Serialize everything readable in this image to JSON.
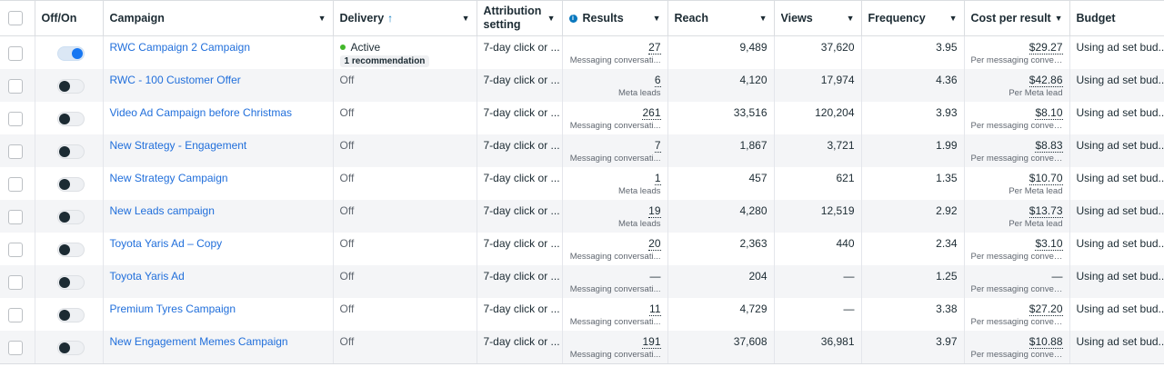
{
  "headers": {
    "off_on": "Off/On",
    "campaign": "Campaign",
    "delivery": "Delivery",
    "delivery_sort_icon": "arrow-up",
    "attribution_line1": "Attribution",
    "attribution_line2": "setting",
    "results": "Results",
    "reach": "Reach",
    "views": "Views",
    "frequency": "Frequency",
    "cost": "Cost per result",
    "budget": "Budget"
  },
  "colors": {
    "link": "#216fdb",
    "active_dot": "#42b72a",
    "toggle_on": "#1877f2"
  },
  "rows": [
    {
      "toggle_on": true,
      "name": "RWC Campaign 2 Campaign",
      "delivery": "Active",
      "recommendation": "1 recommendation",
      "attribution": "7-day click or ...",
      "results": "27",
      "results_sub": "Messaging conversati...",
      "reach": "9,489",
      "views": "37,620",
      "frequency": "3.95",
      "cost": "$29.27",
      "cost_sub": "Per messaging conver...",
      "budget": "Using ad set bud..."
    },
    {
      "toggle_on": false,
      "name": "RWC - 100 Customer Offer",
      "delivery": "Off",
      "attribution": "7-day click or ...",
      "results": "6",
      "results_sub": "Meta leads",
      "reach": "4,120",
      "views": "17,974",
      "frequency": "4.36",
      "cost": "$42.86",
      "cost_sub": "Per Meta lead",
      "budget": "Using ad set bud..."
    },
    {
      "toggle_on": false,
      "name": "Video Ad Campaign before Christmas",
      "delivery": "Off",
      "attribution": "7-day click or ...",
      "results": "261",
      "results_sub": "Messaging conversati...",
      "reach": "33,516",
      "views": "120,204",
      "frequency": "3.93",
      "cost": "$8.10",
      "cost_sub": "Per messaging conver...",
      "budget": "Using ad set bud..."
    },
    {
      "toggle_on": false,
      "name": "New Strategy - Engagement",
      "delivery": "Off",
      "attribution": "7-day click or ...",
      "results": "7",
      "results_sub": "Messaging conversati...",
      "reach": "1,867",
      "views": "3,721",
      "frequency": "1.99",
      "cost": "$8.83",
      "cost_sub": "Per messaging conver...",
      "budget": "Using ad set bud..."
    },
    {
      "toggle_on": false,
      "name": "New Strategy Campaign",
      "delivery": "Off",
      "attribution": "7-day click or ...",
      "results": "1",
      "results_sub": "Meta leads",
      "reach": "457",
      "views": "621",
      "frequency": "1.35",
      "cost": "$10.70",
      "cost_sub": "Per Meta lead",
      "budget": "Using ad set bud..."
    },
    {
      "toggle_on": false,
      "name": "New Leads campaign",
      "delivery": "Off",
      "attribution": "7-day click or ...",
      "results": "19",
      "results_sub": "Meta leads",
      "reach": "4,280",
      "views": "12,519",
      "frequency": "2.92",
      "cost": "$13.73",
      "cost_sub": "Per Meta lead",
      "budget": "Using ad set bud..."
    },
    {
      "toggle_on": false,
      "name": "Toyota Yaris Ad – Copy",
      "delivery": "Off",
      "attribution": "7-day click or ...",
      "results": "20",
      "results_sub": "Messaging conversati...",
      "reach": "2,363",
      "views": "440",
      "frequency": "2.34",
      "cost": "$3.10",
      "cost_sub": "Per messaging conver...",
      "budget": "Using ad set bud..."
    },
    {
      "toggle_on": false,
      "name": "Toyota Yaris Ad",
      "delivery": "Off",
      "attribution": "7-day click or ...",
      "results": "—",
      "results_sub": "Messaging conversati...",
      "reach": "204",
      "views": "—",
      "frequency": "1.25",
      "cost": "—",
      "cost_sub": "Per messaging convers...",
      "budget": "Using ad set bud..."
    },
    {
      "toggle_on": false,
      "name": "Premium Tyres Campaign",
      "delivery": "Off",
      "attribution": "7-day click or ...",
      "results": "11",
      "results_sub": "Messaging conversati...",
      "reach": "4,729",
      "views": "—",
      "frequency": "3.38",
      "cost": "$27.20",
      "cost_sub": "Per messaging conver...",
      "budget": "Using ad set bud..."
    },
    {
      "toggle_on": false,
      "name": "New Engagement Memes Campaign",
      "delivery": "Off",
      "attribution": "7-day click or ...",
      "results": "191",
      "results_sub": "Messaging conversati...",
      "reach": "37,608",
      "views": "36,981",
      "frequency": "3.97",
      "cost": "$10.88",
      "cost_sub": "Per messaging conver...",
      "budget": "Using ad set bud..."
    }
  ]
}
